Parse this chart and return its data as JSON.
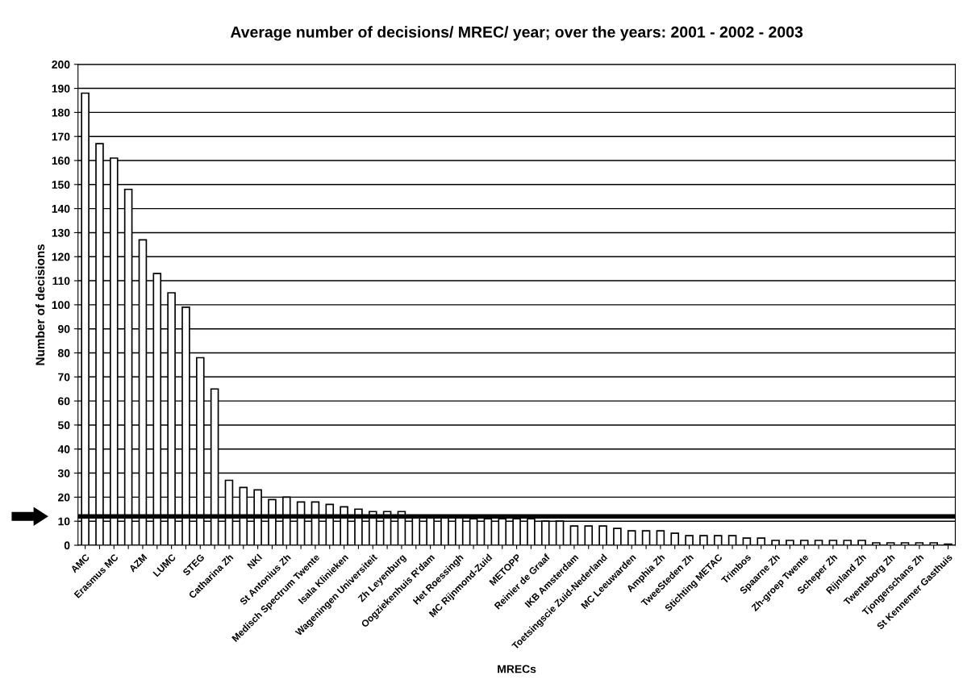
{
  "chart_data": {
    "type": "bar",
    "title": "Average number of decisions/ MREC/ year; over the years: 2001 - 2002 - 2003",
    "xlabel": "MRECs",
    "ylabel": "Number of decisions",
    "categories": [
      "AMC",
      null,
      "Erasmus MC",
      null,
      "AZM",
      null,
      "LUMC",
      null,
      "STEG",
      null,
      "Catharina Zh",
      null,
      "NKI",
      null,
      "St Antonius Zh",
      null,
      "Medisch Spectrum Twente",
      null,
      "Isala Klinieken",
      null,
      "Wageningen Universiteit",
      null,
      "Zh Leyenburg",
      null,
      "Oogziekenhuis R'dam",
      null,
      "Het Roessingh",
      null,
      "MC Rijnmond-Zuid",
      null,
      "METOPP",
      null,
      "Reinier de Graaf",
      null,
      "IKB Amsterdam",
      null,
      "Toetsingscie Zuid-Nederland",
      null,
      "MC Leeuwarden",
      null,
      "Amphia Zh",
      null,
      "TweeSteden Zh",
      null,
      "Stichting METAC",
      null,
      "Trimbos",
      null,
      "Spaarne Zh",
      null,
      "Zh-groep Twente",
      null,
      "Scheper Zh",
      null,
      "Rijnland Zh",
      null,
      "Twenteborg Zh",
      null,
      "Tjongerschans Zh",
      null,
      "St Kennemer Gasthuis"
    ],
    "values": [
      188,
      167,
      161,
      148,
      127,
      113,
      105,
      99,
      78,
      65,
      27,
      24,
      23,
      19,
      20,
      18,
      18,
      17,
      16,
      15,
      14,
      14,
      14,
      12,
      12,
      12,
      12,
      11,
      11,
      11,
      11,
      11,
      10,
      10,
      8,
      8,
      8,
      7,
      6,
      6,
      6,
      5,
      4,
      4,
      4,
      4,
      3,
      3,
      2,
      2,
      2,
      2,
      2,
      2,
      2,
      1,
      1,
      1,
      1,
      1,
      0.5
    ],
    "color": "#ffffff",
    "ylim": [
      0,
      200
    ],
    "yticks": [
      0,
      10,
      20,
      30,
      40,
      50,
      60,
      70,
      80,
      90,
      100,
      110,
      120,
      130,
      140,
      150,
      160,
      170,
      180,
      190,
      200
    ],
    "grid": "y",
    "ref_lines": [
      {
        "axis": "y",
        "value": 12,
        "color": "#000000"
      }
    ]
  }
}
